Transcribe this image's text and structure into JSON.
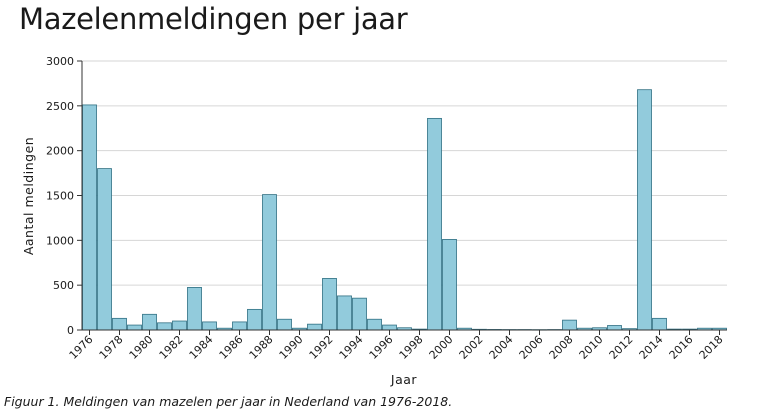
{
  "chart_data": {
    "type": "bar",
    "title": "Mazelenmeldingen per jaar",
    "xlabel": "Jaar",
    "ylabel": "Aantal meldingen",
    "ylim": [
      0,
      3000
    ],
    "yticks": [
      0,
      500,
      1000,
      1500,
      2000,
      2500,
      3000
    ],
    "grid": true,
    "bar_color": "#92cbdc",
    "bar_edge_color": "#2f6f82",
    "categories": [
      1976,
      1977,
      1978,
      1979,
      1980,
      1981,
      1982,
      1983,
      1984,
      1985,
      1986,
      1987,
      1988,
      1989,
      1990,
      1991,
      1992,
      1993,
      1994,
      1995,
      1996,
      1997,
      1998,
      1999,
      2000,
      2001,
      2002,
      2003,
      2004,
      2005,
      2006,
      2007,
      2008,
      2009,
      2010,
      2011,
      2012,
      2013,
      2014,
      2015,
      2016,
      2017,
      2018
    ],
    "x_tick_labels": [
      "1976",
      "1978",
      "1980",
      "1982",
      "1984",
      "1986",
      "1988",
      "1990",
      "1992",
      "1994",
      "1996",
      "1998",
      "2000",
      "2002",
      "2004",
      "2006",
      "2008",
      "2010",
      "2012",
      "2014",
      "2016",
      "2018"
    ],
    "values": [
      2510,
      1800,
      130,
      55,
      175,
      80,
      100,
      475,
      90,
      20,
      90,
      230,
      1510,
      120,
      20,
      65,
      575,
      380,
      355,
      120,
      55,
      25,
      10,
      2360,
      1010,
      20,
      8,
      6,
      5,
      5,
      4,
      5,
      110,
      20,
      25,
      50,
      15,
      2680,
      130,
      10,
      10,
      20,
      20
    ]
  },
  "caption": "Figuur 1. Meldingen van mazelen per jaar in Nederland van 1976-2018."
}
